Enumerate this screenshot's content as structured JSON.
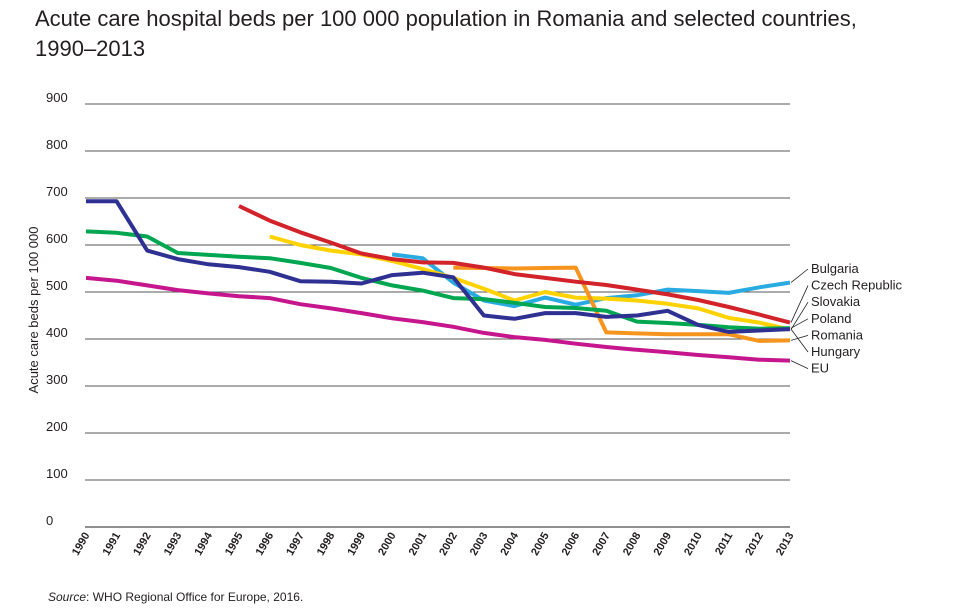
{
  "title_line1": "Acute care hospital beds per 100 000 population in Romania and selected countries,",
  "title_line2": "1990–2013",
  "source_label": "Source",
  "source_text": ": WHO Regional Office for Europe, 2016.",
  "chart_data": {
    "type": "line",
    "title": "Acute care hospital beds per 100 000 population in Romania and selected countries, 1990–2013",
    "xlabel": "",
    "ylabel": "Acute care beds per 100 000",
    "ylim": [
      0,
      900
    ],
    "yticks": [
      0,
      100,
      200,
      300,
      400,
      500,
      600,
      700,
      800,
      900
    ],
    "x": [
      "1990",
      "1991",
      "1992",
      "1993",
      "1994",
      "1995",
      "1996",
      "1997",
      "1998",
      "1999",
      "2000",
      "2001",
      "2002",
      "2003",
      "2004",
      "2005",
      "2006",
      "2007",
      "2008",
      "2009",
      "2010",
      "2011",
      "2012",
      "2013"
    ],
    "grid": "horizontal",
    "legend": "right",
    "series": [
      {
        "name": "Bulgaria",
        "color": "#29abe2",
        "values": [
          null,
          null,
          null,
          null,
          null,
          null,
          null,
          null,
          null,
          null,
          580,
          572,
          520,
          482,
          470,
          488,
          473,
          487,
          493,
          505,
          502,
          498,
          510,
          520
        ]
      },
      {
        "name": "Czech Republic",
        "color": "#d2232a",
        "values": [
          null,
          null,
          null,
          null,
          null,
          683,
          652,
          627,
          605,
          582,
          570,
          563,
          562,
          552,
          538,
          530,
          522,
          515,
          505,
          495,
          483,
          468,
          452,
          435
        ]
      },
      {
        "name": "Slovakia",
        "color": "#ffd200",
        "values": [
          null,
          null,
          null,
          null,
          null,
          null,
          618,
          600,
          588,
          580,
          566,
          549,
          530,
          507,
          482,
          500,
          488,
          486,
          482,
          475,
          465,
          445,
          435,
          420
        ]
      },
      {
        "name": "Poland",
        "color": "#00a650",
        "values": [
          629,
          626,
          618,
          583,
          579,
          575,
          572,
          562,
          551,
          530,
          514,
          503,
          487,
          485,
          477,
          468,
          466,
          460,
          437,
          434,
          430,
          425,
          422,
          423
        ]
      },
      {
        "name": "Romania",
        "color": "#f7941d",
        "values": [
          null,
          null,
          null,
          null,
          null,
          null,
          null,
          null,
          null,
          null,
          null,
          null,
          552,
          551,
          550,
          551,
          552,
          414,
          412,
          410,
          410,
          410,
          396,
          397
        ]
      },
      {
        "name": "Hungary",
        "color": "#2e3192",
        "values": [
          693,
          693,
          588,
          570,
          559,
          553,
          543,
          523,
          522,
          518,
          536,
          541,
          531,
          450,
          443,
          455,
          455,
          447,
          450,
          460,
          430,
          415,
          418,
          421
        ]
      },
      {
        "name": "EU",
        "color": "#c6168d",
        "values": [
          530,
          524,
          514,
          504,
          497,
          491,
          487,
          474,
          465,
          455,
          444,
          436,
          426,
          413,
          404,
          398,
          390,
          383,
          377,
          372,
          366,
          361,
          356,
          354
        ]
      }
    ]
  }
}
